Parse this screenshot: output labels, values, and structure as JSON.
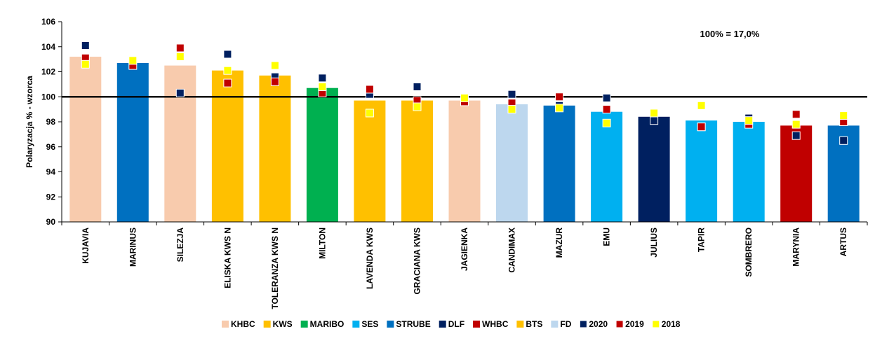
{
  "chart_data": {
    "type": "bar",
    "ylabel": "Polaryzacja % - wzorca",
    "xlabel": "",
    "ylim": [
      90,
      106
    ],
    "yticks": [
      "90",
      "92",
      "94",
      "96",
      "98",
      "100",
      "102",
      "104",
      "106"
    ],
    "reference_line": 100,
    "annotation": "100% = 17,0%",
    "categories": [
      "KUJAVIA",
      "MARINUS",
      "SILEZJA",
      "ELISKA KWS N",
      "TOLERANZA KWS N",
      "MILTON",
      "LAVENDA KWS",
      "GRACIANA KWS",
      "JAGIENKA",
      "CANDIMAX",
      "MAZUR",
      "EMU",
      "JULIUS",
      "TAPIR",
      "SOMBRERO",
      "MARYNIA",
      "ARTUS"
    ],
    "companies": [
      "KHBC",
      "STRUBE",
      "KHBC",
      "KWS",
      "KWS",
      "MARIBO",
      "KWS",
      "KWS",
      "KHBC",
      "FD",
      "STRUBE",
      "SES",
      "DLF",
      "SES",
      "SES",
      "WHBC",
      "STRUBE"
    ],
    "values": [
      103.2,
      102.7,
      102.5,
      102.1,
      101.7,
      100.7,
      99.7,
      99.7,
      99.7,
      99.4,
      99.3,
      98.8,
      98.4,
      98.1,
      98.0,
      97.7,
      97.7
    ],
    "series": [
      {
        "name": "2020",
        "values": [
          104.1,
          null,
          100.3,
          103.4,
          101.6,
          101.5,
          100.2,
          100.8,
          null,
          100.2,
          99.3,
          99.9,
          98.1,
          97.6,
          98.3,
          96.9,
          96.5
        ]
      },
      {
        "name": "2019",
        "values": [
          103.1,
          102.5,
          103.9,
          101.1,
          101.2,
          100.3,
          100.6,
          99.7,
          99.6,
          99.5,
          100.0,
          99.0,
          null,
          97.6,
          97.8,
          98.6,
          98.0
        ]
      },
      {
        "name": "2018",
        "values": [
          102.6,
          102.9,
          103.2,
          102.1,
          102.5,
          100.8,
          98.7,
          99.2,
          99.9,
          99.0,
          99.1,
          97.9,
          98.7,
          99.3,
          98.1,
          97.8,
          98.5
        ]
      }
    ],
    "legend": [
      {
        "name": "KHBC",
        "color": "#F8CBAD"
      },
      {
        "name": "KWS",
        "color": "#FFC000"
      },
      {
        "name": "MARIBO",
        "color": "#00B050"
      },
      {
        "name": "SES",
        "color": "#00B0F0"
      },
      {
        "name": "STRUBE",
        "color": "#0070C0"
      },
      {
        "name": "DLF",
        "color": "#002060"
      },
      {
        "name": "WHBC",
        "color": "#C00000"
      },
      {
        "name": "BTS",
        "color": "#FFC000"
      },
      {
        "name": "FD",
        "color": "#BDD7EE"
      },
      {
        "name": "2020",
        "color": "#002060",
        "marker": true
      },
      {
        "name": "2019",
        "color": "#C00000",
        "marker": true
      },
      {
        "name": "2018",
        "color": "#FFFF00",
        "marker": true
      }
    ],
    "marker_colors": {
      "2020": "#002060",
      "2019": "#C00000",
      "2018": "#FFFF00"
    },
    "grid": false,
    "legend_position": "bottom"
  }
}
